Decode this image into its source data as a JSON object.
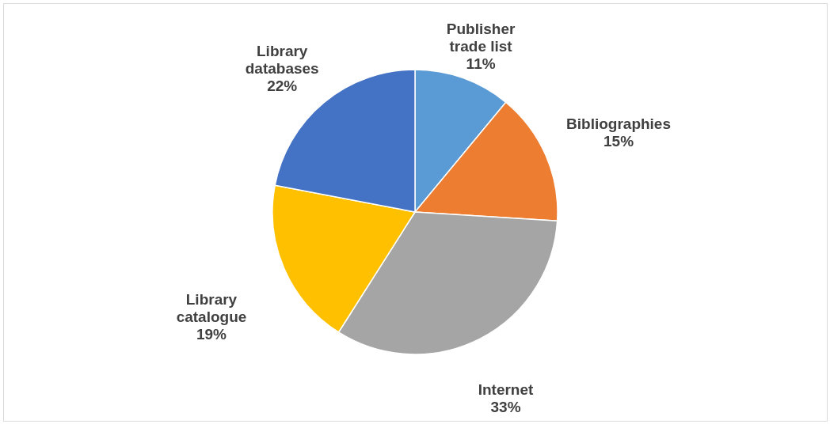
{
  "chart_data": {
    "type": "pie",
    "categories": [
      "Publisher trade list",
      "Bibliographies",
      "Internet",
      "Library catalogue",
      "Library databases"
    ],
    "values": [
      11,
      15,
      33,
      19,
      22
    ],
    "colors": [
      "#5b9bd5",
      "#ed7d31",
      "#a5a5a5",
      "#ffc000",
      "#4472c4"
    ],
    "value_labels": [
      "11%",
      "15%",
      "33%",
      "19%",
      "22%"
    ]
  }
}
